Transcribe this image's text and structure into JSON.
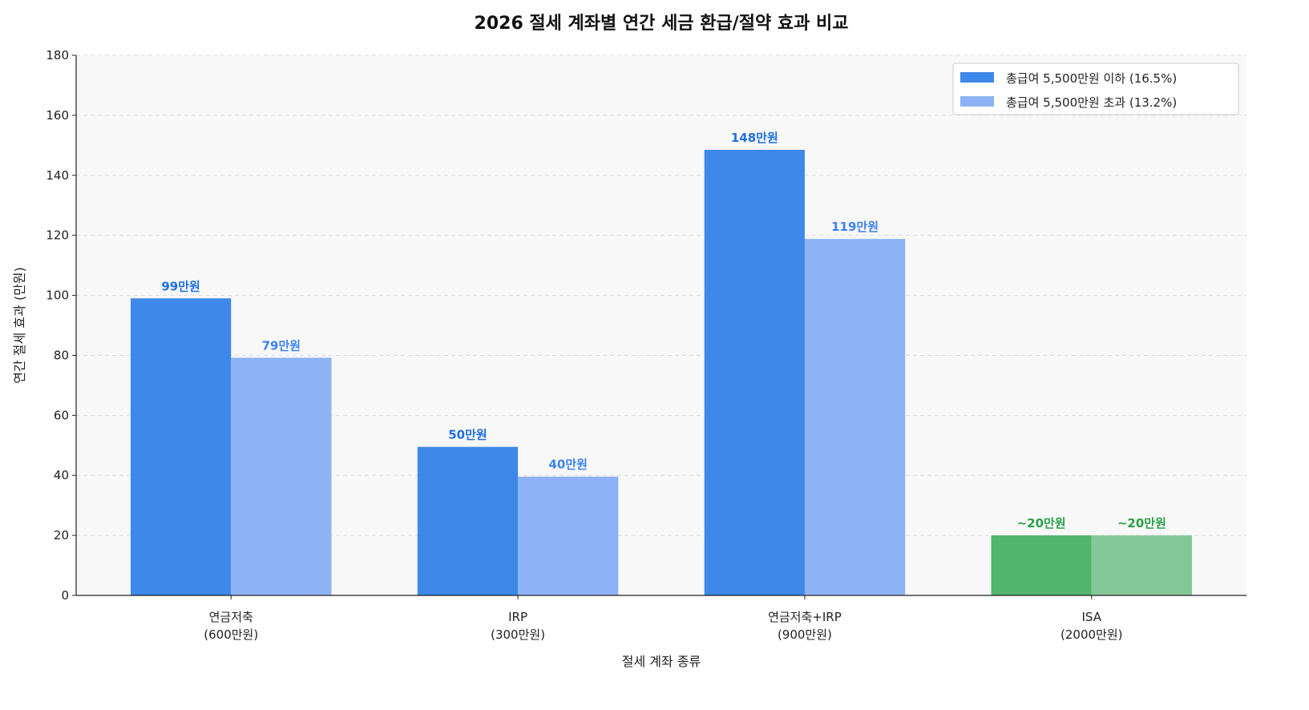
{
  "chart_data": {
    "type": "bar",
    "title": "2026 절세 계좌별 연간 세금 환급/절약 효과 비교",
    "xlabel": "절세 계좌 종류",
    "ylabel": "연간 절세 효과 (만원)",
    "ylim": [
      0,
      180
    ],
    "yticks": [
      0,
      20,
      40,
      60,
      80,
      100,
      120,
      140,
      160,
      180
    ],
    "grid": "y dashed",
    "legend_position": "top-right",
    "categories": [
      [
        "연금저축",
        "(600만원)"
      ],
      [
        "IRP",
        "(300만원)"
      ],
      [
        "연금저축+IRP",
        "(900만원)"
      ],
      [
        "ISA",
        "(2000만원)"
      ]
    ],
    "series": [
      {
        "name": "총급여 5,500만원 이하 (16.5%)",
        "values": [
          99,
          49.5,
          148.5,
          20
        ],
        "labels": [
          "99만원",
          "50만원",
          "148만원",
          "~20만원"
        ],
        "color": "#3d88e8",
        "label_color": "#1f6fe0"
      },
      {
        "name": "총급여 5,500만원 초과 (13.2%)",
        "values": [
          79.2,
          39.6,
          118.8,
          20
        ],
        "labels": [
          "79만원",
          "40만원",
          "119만원",
          "~20만원"
        ],
        "color": "#8db3f6",
        "label_color": "#3d82f0"
      }
    ],
    "special_category_colors": {
      "index": 3,
      "colors": [
        "#53b46c",
        "#85c897"
      ],
      "label_color": "#2a9f48"
    },
    "background": "#f8f8f8"
  }
}
